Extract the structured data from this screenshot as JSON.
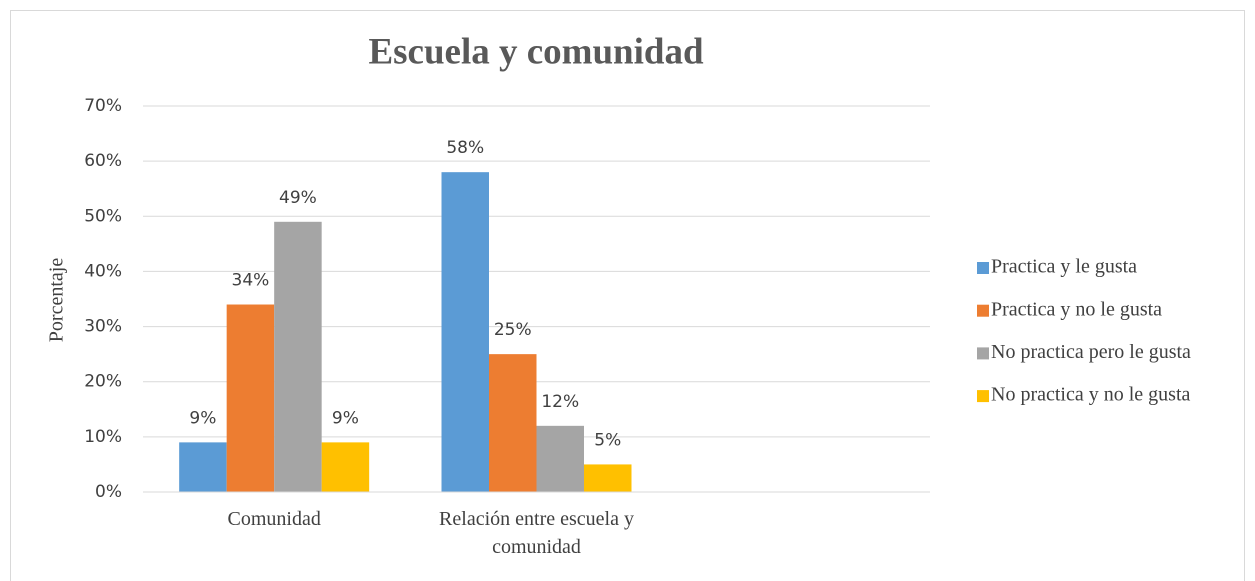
{
  "chart_data": {
    "type": "bar",
    "title": "Escuela y comunidad",
    "y_label": "Porcentaje",
    "categories": [
      "Comunidad",
      "Relación entre escuela y comunidad",
      null
    ],
    "series": [
      {
        "name": "Practica y le gusta",
        "color": "#5b9bd5",
        "values": [
          9,
          58,
          null
        ],
        "value_labels": [
          "9%",
          "58%",
          null
        ]
      },
      {
        "name": "Practica y no le gusta",
        "color": "#ed7d31",
        "values": [
          34,
          25,
          null
        ],
        "value_labels": [
          "34%",
          "25%",
          null
        ]
      },
      {
        "name": "No practica pero le gusta",
        "color": "#a5a5a5",
        "values": [
          49,
          12,
          null
        ],
        "value_labels": [
          "49%",
          "12%",
          null
        ]
      },
      {
        "name": "No practica y no le gusta",
        "color": "#ffc000",
        "values": [
          9,
          5,
          null
        ],
        "value_labels": [
          "9%",
          "5%",
          null
        ]
      }
    ],
    "ylim": [
      0,
      70
    ],
    "yticks": [
      {
        "value": 0,
        "label": "0%"
      },
      {
        "value": 10,
        "label": "10%"
      },
      {
        "value": 20,
        "label": "20%"
      },
      {
        "value": 30,
        "label": "30%"
      },
      {
        "value": 40,
        "label": "40%"
      },
      {
        "value": 50,
        "label": "50%"
      },
      {
        "value": 60,
        "label": "60%"
      },
      {
        "value": 70,
        "label": "70%"
      }
    ],
    "grid": true,
    "legend": "right"
  }
}
